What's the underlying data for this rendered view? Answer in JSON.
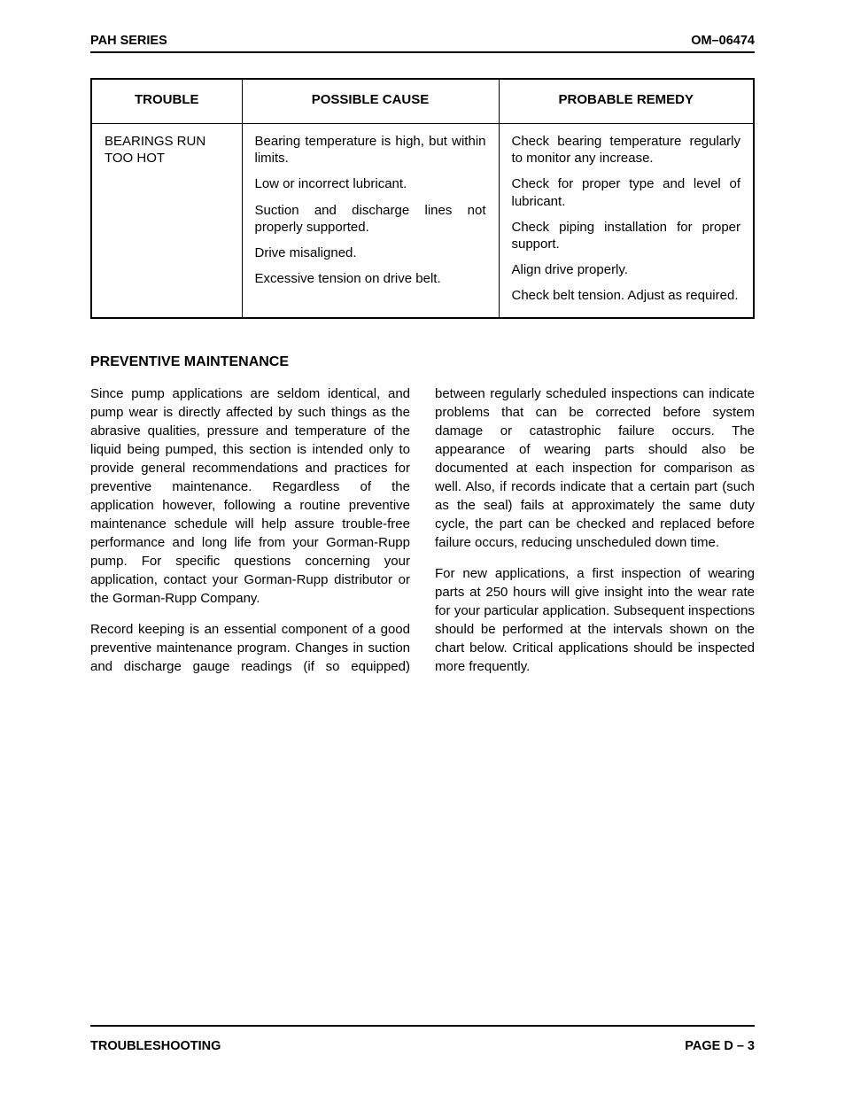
{
  "header": {
    "left": "PAH SERIES",
    "right": "OM–06474"
  },
  "footer": {
    "left": "TROUBLESHOOTING",
    "right": "PAGE D – 3"
  },
  "table": {
    "columns": [
      "TROUBLE",
      "POSSIBLE CAUSE",
      "PROBABLE REMEDY"
    ],
    "trouble": "BEARINGS RUN TOO HOT",
    "rows": [
      {
        "cause": "Bearing temperature is high, but within limits.",
        "remedy": "Check bearing temperature regularly to monitor any increase."
      },
      {
        "cause": "Low or incorrect lubricant.",
        "remedy": "Check for proper type and level of lubricant."
      },
      {
        "cause": "Suction and discharge lines not properly supported.",
        "remedy": "Check piping installation for proper support."
      },
      {
        "cause": "Drive misaligned.",
        "remedy": "Align drive properly."
      },
      {
        "cause": "Excessive tension on drive belt.",
        "remedy": "Check belt tension. Adjust as required."
      }
    ]
  },
  "section": {
    "title": "PREVENTIVE MAINTENANCE",
    "p1": "Since pump applications are seldom identical, and pump wear is directly affected by such things as the abrasive qualities, pressure and temperature of the liquid being pumped, this section is intended only to provide general recommendations and practices for preventive maintenance. Regardless of the application however, following a routine preventive maintenance schedule will help assure trouble-free performance and long life from your Gorman-Rupp pump. For specific questions concerning your application, contact your Gorman-Rupp distributor or the Gorman-Rupp Company.",
    "p2": "Record keeping is an essential component of a good preventive maintenance program. Changes in suction and discharge gauge readings (if so equipped) between regularly scheduled inspections can indicate problems that can be corrected before system damage or catastrophic failure occurs. The appearance of wearing parts should also be documented at each inspection for comparison as well. Also, if records indicate that a certain part (such as the seal) fails at approximately the same duty cycle, the part can be checked and replaced before failure occurs, reducing unscheduled down time.",
    "p3": "For new applications, a first inspection of wearing parts at 250 hours will give insight into the wear rate for your particular application. Subsequent inspections should be performed at the intervals shown on the chart below. Critical applications should be inspected more frequently."
  }
}
